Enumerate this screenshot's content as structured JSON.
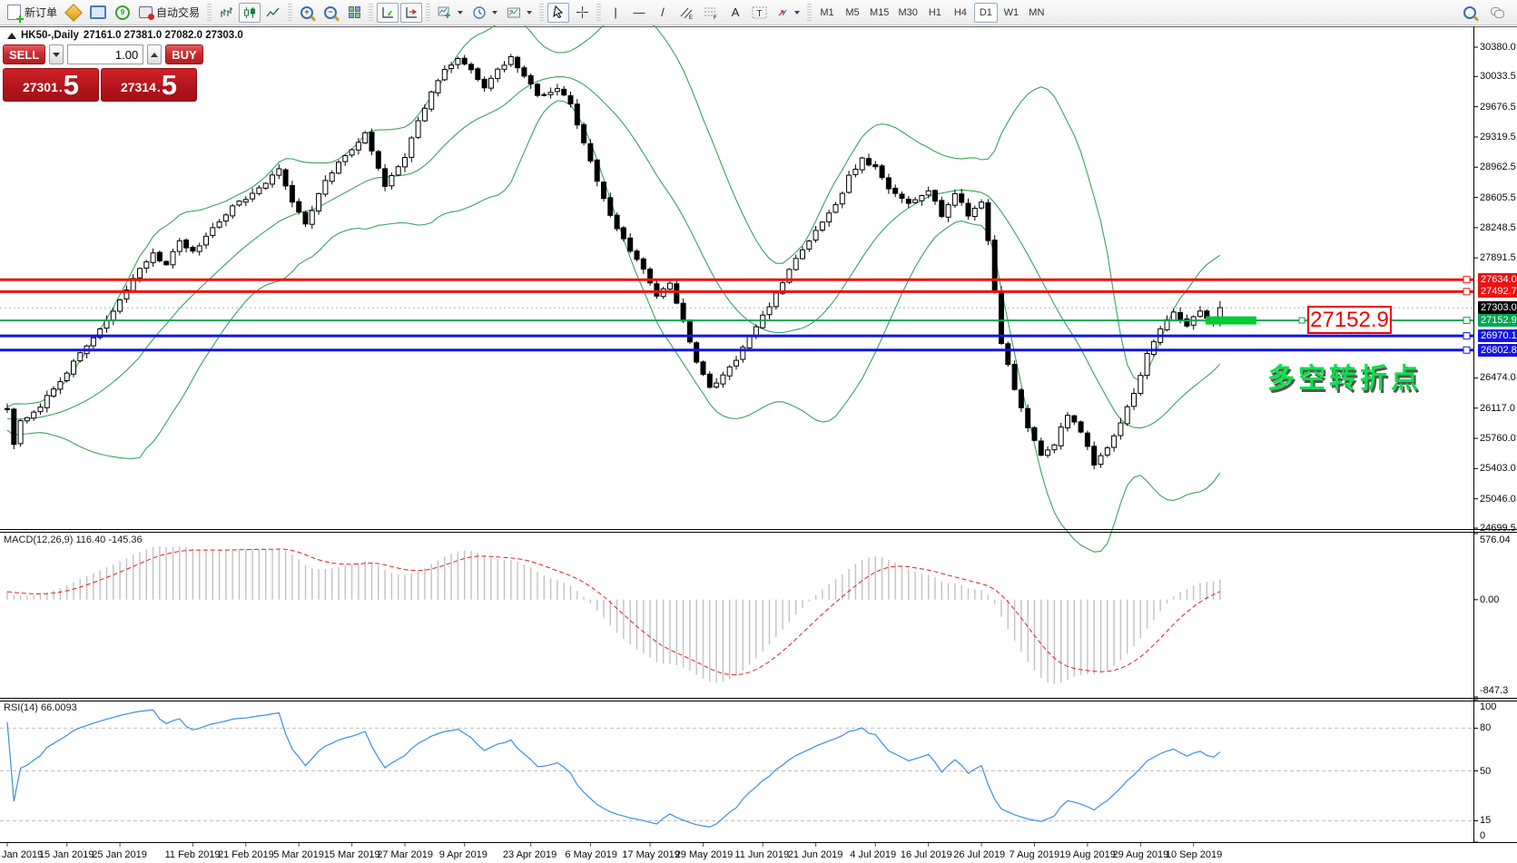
{
  "toolbar": {
    "new_order_label": "新订单",
    "auto_trading_label": "自动交易",
    "timeframes": [
      "M1",
      "M5",
      "M15",
      "M30",
      "H1",
      "H4",
      "D1",
      "W1",
      "MN"
    ],
    "active_timeframe": "D1",
    "icon_names": [
      "new-order",
      "metaeditor",
      "market-watch",
      "signals",
      "auto-trading",
      "bar-chart",
      "candlestick-chart",
      "line-chart",
      "zoom-in",
      "zoom-out",
      "tile-windows",
      "auto-scroll",
      "chart-shift",
      "indicators-list",
      "periods",
      "templates",
      "cursor",
      "crosshair",
      "vertical-line",
      "horizontal-line",
      "trendline",
      "equidistant-channel",
      "fibonacci-retracement",
      "text",
      "text-label",
      "arrows",
      "search",
      "chat"
    ]
  },
  "chart_header": {
    "symbol_period": "HK50-,Daily",
    "ohlc_text": "27161.0 27381.0 27082.0 27303.0"
  },
  "trade_panel": {
    "sell_label": "SELL",
    "buy_label": "BUY",
    "volume": "1.00",
    "sell_price_int": "27301",
    "sell_price_dec": "5",
    "buy_price_int": "27314",
    "buy_price_dec": "5",
    "decimal_point": "."
  },
  "annotations": {
    "price_callout": "27152.9",
    "turning_point_text": "多空转折点",
    "callout_color": "#f00000",
    "turning_point_color": "#0ce04a",
    "highlight_color": "#00cc33"
  },
  "levels": [
    {
      "price": 27634.0,
      "label": "27634.0",
      "color": "#ee1111",
      "width": 3,
      "style": "solid"
    },
    {
      "price": 27492.7,
      "label": "27492.7",
      "color": "#ee1111",
      "width": 3,
      "style": "solid"
    },
    {
      "price": 27303.0,
      "label": "27303.0",
      "color": "#b0b0b0",
      "width": 1,
      "style": "dotted",
      "label_bg": "#000000"
    },
    {
      "price": 27152.9,
      "label": "27152.9",
      "color": "#00a651",
      "width": 2,
      "style": "solid"
    },
    {
      "price": 26970.1,
      "label": "26970.1",
      "color": "#1414e6",
      "width": 3,
      "style": "solid"
    },
    {
      "price": 26802.8,
      "label": "26802.8",
      "color": "#1414e6",
      "width": 3,
      "style": "solid"
    }
  ],
  "axis": {
    "price_ticks": [
      "30380.0",
      "30033.5",
      "29676.5",
      "29319.5",
      "28962.5",
      "28605.5",
      "28248.5",
      "27891.5",
      "26474.0",
      "26117.0",
      "25760.0",
      "25403.0",
      "25046.0",
      "24699.5"
    ],
    "macd_ticks": [
      {
        "label": "576.04",
        "value": 576.04
      },
      {
        "label": "0.00",
        "value": 0
      },
      {
        "label": "-847.3",
        "value": -847.3
      }
    ],
    "rsi_ticks": [
      {
        "label": "100",
        "value": 100
      },
      {
        "label": "80",
        "value": 80
      },
      {
        "label": "50",
        "value": 50
      },
      {
        "label": "15",
        "value": 15
      },
      {
        "label": "0",
        "value": 0
      }
    ],
    "rsi_levels": [
      80,
      50,
      15
    ]
  },
  "indicators": {
    "macd_label": "MACD(12,26,9) 116.40 -145.36",
    "rsi_label": "RSI(14) 66.0093"
  },
  "dates": [
    [
      "Jan 2019",
      0
    ],
    [
      "15 Jan 2019",
      9
    ],
    [
      "25 Jan 2019",
      17
    ],
    [
      "11 Feb 2019",
      28
    ],
    [
      "21 Feb 2019",
      36
    ],
    [
      "5 Mar 2019",
      44
    ],
    [
      "15 Mar 2019",
      52
    ],
    [
      "27 Mar 2019",
      60
    ],
    [
      "9 Apr 2019",
      69
    ],
    [
      "23 Apr 2019",
      79
    ],
    [
      "6 May 2019",
      88
    ],
    [
      "17 May 2019",
      97
    ],
    [
      "29 May 2019",
      105
    ],
    [
      "11 Jun 2019",
      114
    ],
    [
      "21 Jun 2019",
      122
    ],
    [
      "4 Jul 2019",
      131
    ],
    [
      "16 Jul 2019",
      139
    ],
    [
      "26 Jul 2019",
      147
    ],
    [
      "7 Aug 2019",
      155
    ],
    [
      "19 Aug 2019",
      163
    ],
    [
      "29 Aug 2019",
      171
    ],
    [
      "10 Sep 2019",
      179
    ]
  ],
  "chart_data": {
    "type": "candlestick",
    "symbol": "HK50-",
    "timeframe": "Daily",
    "title": "HK50-,Daily",
    "bid": 27301.5,
    "ask": 27314.5,
    "last_candle": {
      "o": 27161.0,
      "h": 27381.0,
      "l": 27082.0,
      "c": 27303.0
    },
    "candle_count": 184,
    "noise": 45,
    "price_axis_range": [
      24699.5,
      30380.0
    ],
    "close_anchors": [
      [
        0,
        26100
      ],
      [
        1,
        25700
      ],
      [
        2,
        25950
      ],
      [
        4,
        26050
      ],
      [
        7,
        26350
      ],
      [
        10,
        26650
      ],
      [
        13,
        26950
      ],
      [
        16,
        27250
      ],
      [
        19,
        27650
      ],
      [
        22,
        27950
      ],
      [
        24,
        27800
      ],
      [
        26,
        28100
      ],
      [
        28,
        27950
      ],
      [
        31,
        28250
      ],
      [
        34,
        28500
      ],
      [
        38,
        28700
      ],
      [
        41,
        28950
      ],
      [
        43,
        28550
      ],
      [
        45,
        28300
      ],
      [
        48,
        28800
      ],
      [
        51,
        29100
      ],
      [
        54,
        29350
      ],
      [
        57,
        28750
      ],
      [
        60,
        29100
      ],
      [
        62,
        29500
      ],
      [
        64,
        29850
      ],
      [
        66,
        30100
      ],
      [
        68,
        30250
      ],
      [
        70,
        30100
      ],
      [
        72,
        29900
      ],
      [
        74,
        30100
      ],
      [
        76,
        30250
      ],
      [
        78,
        30050
      ],
      [
        80,
        29800
      ],
      [
        83,
        29900
      ],
      [
        85,
        29700
      ],
      [
        87,
        29250
      ],
      [
        89,
        28800
      ],
      [
        91,
        28400
      ],
      [
        93,
        28100
      ],
      [
        96,
        27750
      ],
      [
        98,
        27450
      ],
      [
        100,
        27600
      ],
      [
        102,
        27150
      ],
      [
        104,
        26650
      ],
      [
        106,
        26350
      ],
      [
        108,
        26500
      ],
      [
        110,
        26700
      ],
      [
        112,
        26950
      ],
      [
        114,
        27200
      ],
      [
        117,
        27600
      ],
      [
        120,
        28000
      ],
      [
        123,
        28300
      ],
      [
        125,
        28500
      ],
      [
        127,
        28850
      ],
      [
        129,
        29050
      ],
      [
        131,
        28950
      ],
      [
        133,
        28700
      ],
      [
        136,
        28550
      ],
      [
        139,
        28700
      ],
      [
        141,
        28400
      ],
      [
        143,
        28650
      ],
      [
        145,
        28400
      ],
      [
        147,
        28550
      ],
      [
        148,
        28100
      ],
      [
        149,
        27500
      ],
      [
        150,
        26900
      ],
      [
        152,
        26350
      ],
      [
        154,
        25900
      ],
      [
        156,
        25550
      ],
      [
        158,
        25700
      ],
      [
        160,
        26050
      ],
      [
        162,
        25850
      ],
      [
        164,
        25450
      ],
      [
        166,
        25650
      ],
      [
        168,
        25950
      ],
      [
        170,
        26300
      ],
      [
        172,
        26750
      ],
      [
        174,
        27050
      ],
      [
        176,
        27250
      ],
      [
        178,
        27100
      ],
      [
        180,
        27250
      ],
      [
        182,
        27150
      ],
      [
        183,
        27303
      ]
    ],
    "overlays": [
      {
        "name": "Bollinger Bands",
        "period": 20,
        "deviation": 2,
        "color": "#3aa35f"
      }
    ],
    "panes": [
      {
        "name": "MACD",
        "params": "12,26,9",
        "main_value": 116.4,
        "signal_value": -145.36,
        "range": [
          -847.3,
          576.04
        ],
        "histogram_color": "#c2c2c2",
        "signal_color": "#dd2222"
      },
      {
        "name": "RSI",
        "params": "14",
        "value": 66.0093,
        "range": [
          0,
          100
        ],
        "line_color": "#3b8fe8"
      }
    ],
    "highlight_segment": {
      "price": 27152.9,
      "color": "#00cc33"
    }
  }
}
